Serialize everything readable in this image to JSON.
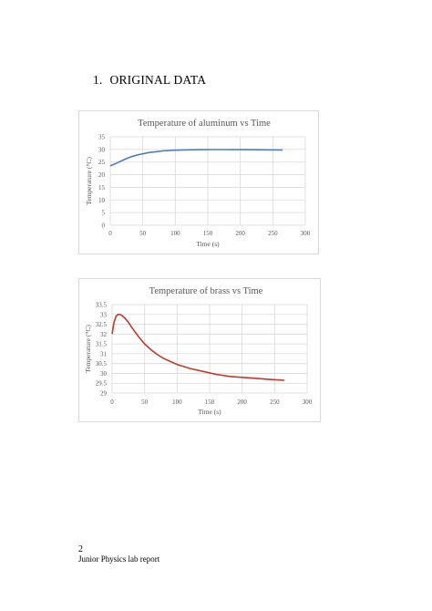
{
  "section": {
    "number": "1.",
    "title": "ORIGINAL DATA"
  },
  "footer": {
    "page_number": "2",
    "report": "Junior Physics lab report"
  },
  "colors": {
    "aluminum": "#4a7ebb",
    "brass": "#c0392b",
    "grid": "#d9d9d9",
    "axis_text": "#595959"
  },
  "chart_data": [
    {
      "type": "line",
      "title": "Temperature of aluminum vs Time",
      "xlabel": "Time (s)",
      "ylabel": "Temperature (°C)",
      "xlim": [
        0,
        300
      ],
      "ylim": [
        0,
        35
      ],
      "xticks": [
        0,
        50,
        100,
        150,
        200,
        250,
        300
      ],
      "yticks": [
        0,
        5,
        10,
        15,
        20,
        25,
        30,
        35
      ],
      "grid": true,
      "series": [
        {
          "color": "#4a7ebb",
          "x": [
            0,
            10,
            20,
            30,
            40,
            50,
            60,
            70,
            80,
            100,
            120,
            140,
            160,
            180,
            200,
            220,
            240,
            265
          ],
          "y": [
            23.5,
            24.6,
            25.8,
            26.9,
            27.7,
            28.3,
            28.8,
            29.1,
            29.4,
            29.7,
            29.85,
            29.9,
            29.95,
            29.95,
            29.9,
            29.9,
            29.85,
            29.8
          ]
        }
      ]
    },
    {
      "type": "line",
      "title": "Temperature of brass vs Time",
      "xlabel": "Time (s)",
      "ylabel": "Temperature (°C)",
      "xlim": [
        0,
        300
      ],
      "ylim": [
        29,
        33.5
      ],
      "xticks": [
        0,
        50,
        100,
        150,
        200,
        250,
        300
      ],
      "yticks": [
        29,
        29.5,
        30,
        30.5,
        31,
        31.5,
        32,
        32.5,
        33,
        33.5
      ],
      "grid": true,
      "series": [
        {
          "color": "#c0392b",
          "x": [
            0,
            3,
            6,
            9,
            12,
            15,
            20,
            25,
            30,
            40,
            50,
            60,
            70,
            80,
            90,
            100,
            110,
            120,
            140,
            160,
            180,
            200,
            220,
            240,
            265
          ],
          "y": [
            32.0,
            32.6,
            32.9,
            33.0,
            33.0,
            32.95,
            32.8,
            32.6,
            32.35,
            31.9,
            31.5,
            31.2,
            30.95,
            30.75,
            30.6,
            30.45,
            30.35,
            30.25,
            30.1,
            29.95,
            29.85,
            29.8,
            29.75,
            29.7,
            29.65
          ]
        }
      ]
    }
  ]
}
